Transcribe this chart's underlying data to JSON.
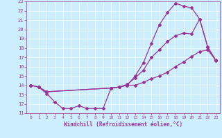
{
  "xlabel": "Windchill (Refroidissement éolien,°C)",
  "bg_color": "#cceeff",
  "line_color": "#993399",
  "grid_color": "#aaddcc",
  "xlim": [
    -0.5,
    23.5
  ],
  "ylim": [
    11,
    23
  ],
  "xticks": [
    0,
    1,
    2,
    3,
    4,
    5,
    6,
    7,
    8,
    9,
    10,
    11,
    12,
    13,
    14,
    15,
    16,
    17,
    18,
    19,
    20,
    21,
    22,
    23
  ],
  "yticks": [
    11,
    12,
    13,
    14,
    15,
    16,
    17,
    18,
    19,
    20,
    21,
    22,
    23
  ],
  "line1_x": [
    0,
    1,
    2,
    3,
    4,
    5,
    6,
    7,
    8,
    9,
    10,
    11,
    12,
    13,
    14,
    15,
    16,
    17,
    18,
    19,
    20,
    21,
    22,
    23
  ],
  "line1_y": [
    14.0,
    13.8,
    13.1,
    12.2,
    11.5,
    11.5,
    11.8,
    11.5,
    11.5,
    11.5,
    13.7,
    13.8,
    14.0,
    15.0,
    16.4,
    18.5,
    20.5,
    21.8,
    22.8,
    22.5,
    22.3,
    21.1,
    18.1,
    16.7
  ],
  "line2_x": [
    0,
    1,
    2,
    10,
    11,
    12,
    13,
    14,
    15,
    16,
    17,
    18,
    19,
    20,
    21,
    22,
    23
  ],
  "line2_y": [
    14.0,
    13.8,
    13.3,
    13.7,
    13.8,
    14.1,
    14.8,
    15.6,
    17.0,
    17.8,
    18.7,
    19.3,
    19.6,
    19.5,
    21.1,
    18.1,
    16.6
  ],
  "line3_x": [
    0,
    1,
    2,
    10,
    11,
    12,
    13,
    14,
    15,
    16,
    17,
    18,
    19,
    20,
    21,
    22,
    23
  ],
  "line3_y": [
    14.0,
    13.8,
    13.3,
    13.7,
    13.8,
    14.0,
    14.0,
    14.3,
    14.7,
    15.0,
    15.4,
    16.0,
    16.5,
    17.1,
    17.6,
    17.8,
    16.7
  ]
}
